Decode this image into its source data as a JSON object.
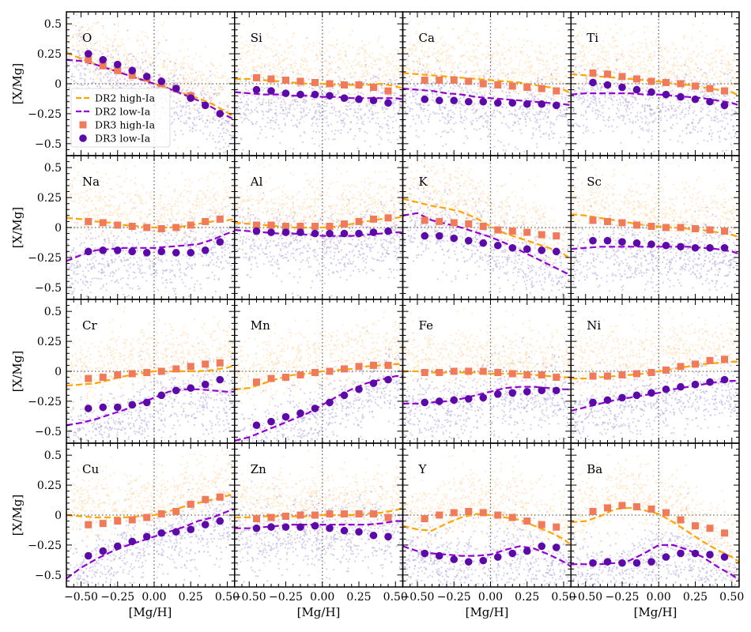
{
  "figure": {
    "xlabel": "[Mg/H]",
    "ylabel": "[X/Mg]",
    "xlim": [
      -0.6,
      0.55
    ],
    "ylim": [
      -0.6,
      0.6
    ],
    "xticks": [
      -0.5,
      -0.25,
      0.0,
      0.25,
      0.5
    ],
    "xtick_labels": [
      "−0.50",
      "−0.25",
      "0.00",
      "0.25",
      "0.50"
    ],
    "yticks": [
      -0.5,
      -0.25,
      0.0,
      0.25,
      0.5
    ],
    "ytick_labels": [
      "−0.5",
      "−0.25",
      "0",
      "0.25",
      "0.5"
    ],
    "reference_lines": {
      "x": 0.0,
      "y": 0.0
    },
    "legend": {
      "panel": "O",
      "location": "lower-left",
      "entries": [
        {
          "label": "DR2 high-Ia",
          "kind": "dashed-line",
          "color": "#ffa500"
        },
        {
          "label": "DR2 low-Ia",
          "kind": "dashed-line",
          "color": "#9400d3"
        },
        {
          "label": "DR3 high-Ia",
          "kind": "square",
          "color": "#f07b5a"
        },
        {
          "label": "DR3 low-Ia",
          "kind": "circle",
          "color": "#5b0aa8"
        }
      ]
    },
    "colors": {
      "high_scatter": "#ffd9a6",
      "low_scatter": "#b3a8dd",
      "dr2_high": "#ffa500",
      "dr2_low": "#9400d3",
      "dr3_high": "#f07b5a",
      "dr3_low": "#5b0aa8",
      "ref_line": "#666666"
    }
  },
  "chart_data": {
    "type": "scatter",
    "x_bins": [
      -0.45,
      -0.35,
      -0.25,
      -0.15,
      -0.05,
      0.05,
      0.15,
      0.25,
      0.35,
      0.45
    ],
    "curve_x": [
      -0.6,
      -0.5,
      -0.4,
      -0.3,
      -0.2,
      -0.1,
      0.0,
      0.1,
      0.2,
      0.3,
      0.4,
      0.5,
      0.55
    ],
    "panels": [
      {
        "element": "O",
        "dr3_high": [
          0.2,
          0.15,
          0.11,
          0.07,
          0.05,
          0.0,
          -0.04,
          -0.1,
          null,
          null
        ],
        "dr3_low": [
          0.25,
          0.2,
          0.16,
          0.11,
          0.06,
          0.02,
          -0.04,
          -0.12,
          -0.18,
          -0.25
        ],
        "dr2_high": [
          0.26,
          0.21,
          0.16,
          0.12,
          0.08,
          0.04,
          0.0,
          -0.04,
          -0.08,
          -0.12,
          -0.17,
          -0.24,
          -0.28
        ],
        "dr2_low": [
          0.2,
          0.19,
          0.16,
          0.12,
          0.08,
          0.04,
          0.0,
          -0.04,
          -0.09,
          -0.14,
          -0.2,
          -0.27,
          -0.3
        ]
      },
      {
        "element": "Si",
        "dr3_high": [
          0.05,
          0.04,
          0.03,
          0.02,
          0.01,
          0.0,
          -0.01,
          -0.01,
          -0.03,
          -0.06
        ],
        "dr3_low": [
          -0.05,
          -0.06,
          -0.08,
          -0.09,
          -0.09,
          -0.1,
          -0.12,
          -0.13,
          -0.14,
          -0.16
        ],
        "dr2_high": [
          0.04,
          0.04,
          0.03,
          0.02,
          0.01,
          0.0,
          0.0,
          -0.01,
          -0.01,
          -0.01,
          0.0,
          -0.02,
          -0.04
        ],
        "dr2_low": [
          -0.07,
          -0.08,
          -0.09,
          -0.09,
          -0.1,
          -0.1,
          -0.11,
          -0.11,
          -0.12,
          -0.12,
          -0.12,
          -0.12,
          -0.13
        ]
      },
      {
        "element": "Ca",
        "dr3_high": [
          0.03,
          0.03,
          0.03,
          0.02,
          0.0,
          -0.01,
          -0.02,
          -0.03,
          -0.04,
          -0.06
        ],
        "dr3_low": [
          -0.13,
          -0.14,
          -0.14,
          -0.15,
          -0.15,
          -0.16,
          -0.16,
          -0.17,
          -0.17,
          -0.18
        ],
        "dr2_high": [
          0.09,
          0.08,
          0.07,
          0.06,
          0.05,
          0.04,
          0.03,
          0.02,
          0.01,
          -0.01,
          -0.03,
          -0.05,
          -0.08
        ],
        "dr2_low": [
          -0.04,
          -0.05,
          -0.06,
          -0.08,
          -0.09,
          -0.11,
          -0.12,
          -0.13,
          -0.14,
          -0.15,
          -0.16,
          -0.17,
          -0.18
        ]
      },
      {
        "element": "Ti",
        "dr3_high": [
          0.09,
          0.08,
          0.06,
          0.04,
          0.02,
          0.01,
          0.0,
          -0.02,
          -0.04,
          -0.06
        ],
        "dr3_low": [
          0.01,
          -0.01,
          -0.03,
          -0.05,
          -0.07,
          -0.09,
          -0.11,
          -0.13,
          -0.15,
          -0.18
        ],
        "dr2_high": [
          0.08,
          0.07,
          0.06,
          0.05,
          0.04,
          0.03,
          0.02,
          0.0,
          -0.01,
          -0.03,
          -0.05,
          -0.07,
          -0.1
        ],
        "dr2_low": [
          -0.09,
          -0.08,
          -0.08,
          -0.08,
          -0.08,
          -0.09,
          -0.09,
          -0.1,
          -0.11,
          -0.12,
          -0.14,
          -0.16,
          -0.18
        ]
      },
      {
        "element": "Na",
        "dr3_high": [
          0.05,
          0.04,
          0.02,
          0.01,
          0.0,
          -0.01,
          0.0,
          0.02,
          0.05,
          0.07
        ],
        "dr3_low": [
          -0.2,
          -0.19,
          -0.19,
          -0.2,
          -0.21,
          -0.2,
          -0.21,
          -0.21,
          -0.19,
          -0.12
        ],
        "dr2_high": [
          0.08,
          0.07,
          0.05,
          0.04,
          0.02,
          0.01,
          0.0,
          0.0,
          0.01,
          0.03,
          0.05,
          0.06,
          0.07
        ],
        "dr2_low": [
          -0.28,
          -0.23,
          -0.19,
          -0.18,
          -0.17,
          -0.17,
          -0.17,
          -0.16,
          -0.15,
          -0.14,
          -0.1,
          -0.05,
          -0.03
        ]
      },
      {
        "element": "Al",
        "dr3_high": [
          0.02,
          0.02,
          0.01,
          0.01,
          0.01,
          0.01,
          0.03,
          0.05,
          0.07,
          0.08
        ],
        "dr3_low": [
          -0.03,
          -0.04,
          -0.04,
          -0.04,
          -0.05,
          -0.05,
          -0.05,
          -0.05,
          -0.04,
          -0.03
        ],
        "dr2_high": [
          0.04,
          0.03,
          0.02,
          0.01,
          0.0,
          0.0,
          0.0,
          0.01,
          0.03,
          0.05,
          0.07,
          0.08,
          0.09
        ],
        "dr2_low": [
          -0.02,
          -0.03,
          -0.04,
          -0.05,
          -0.05,
          -0.06,
          -0.07,
          -0.07,
          -0.07,
          -0.06,
          -0.05,
          -0.04,
          -0.04
        ]
      },
      {
        "element": "K",
        "dr3_high": [
          0.06,
          0.05,
          0.04,
          0.03,
          0.01,
          -0.02,
          -0.03,
          -0.04,
          -0.06,
          -0.07
        ],
        "dr3_low": [
          -0.07,
          -0.07,
          -0.09,
          -0.11,
          -0.13,
          -0.15,
          -0.17,
          -0.18,
          -0.19,
          -0.2
        ],
        "dr2_high": [
          0.24,
          0.21,
          0.18,
          0.16,
          0.13,
          0.08,
          0.01,
          -0.05,
          -0.09,
          -0.13,
          -0.17,
          -0.22,
          -0.27
        ],
        "dr2_low": [
          0.1,
          0.12,
          0.06,
          0.03,
          0.0,
          -0.04,
          -0.08,
          -0.13,
          -0.19,
          -0.25,
          -0.31,
          -0.37,
          -0.4
        ]
      },
      {
        "element": "Sc",
        "dr3_high": [
          0.06,
          0.05,
          0.04,
          0.02,
          0.01,
          0.0,
          0.0,
          -0.01,
          -0.02,
          -0.03
        ],
        "dr3_low": [
          -0.11,
          -0.11,
          -0.12,
          -0.13,
          -0.14,
          -0.15,
          -0.16,
          -0.17,
          -0.17,
          -0.17
        ],
        "dr2_high": [
          0.11,
          0.1,
          0.08,
          0.06,
          0.04,
          0.02,
          0.01,
          0.0,
          -0.01,
          -0.02,
          -0.04,
          -0.06,
          -0.08
        ],
        "dr2_low": [
          -0.18,
          -0.17,
          -0.16,
          -0.16,
          -0.16,
          -0.16,
          -0.16,
          -0.16,
          -0.16,
          -0.17,
          -0.18,
          -0.2,
          -0.22
        ]
      },
      {
        "element": "Cr",
        "dr3_high": [
          -0.06,
          -0.05,
          -0.03,
          -0.02,
          -0.01,
          0.0,
          0.02,
          0.04,
          0.06,
          0.07
        ],
        "dr3_low": [
          -0.31,
          -0.3,
          -0.3,
          -0.28,
          -0.26,
          -0.2,
          -0.16,
          -0.14,
          -0.11,
          -0.07
        ],
        "dr2_high": [
          -0.12,
          -0.11,
          -0.1,
          -0.07,
          -0.04,
          -0.02,
          0.0,
          0.0,
          0.0,
          0.0,
          0.01,
          0.03,
          0.05
        ],
        "dr2_low": [
          -0.45,
          -0.43,
          -0.4,
          -0.36,
          -0.32,
          -0.27,
          -0.22,
          -0.17,
          -0.15,
          -0.15,
          -0.16,
          -0.17,
          -0.17
        ]
      },
      {
        "element": "Mn",
        "dr3_high": [
          -0.09,
          -0.06,
          -0.05,
          -0.03,
          -0.01,
          0.0,
          0.02,
          0.04,
          0.05,
          0.05
        ],
        "dr3_low": [
          -0.45,
          -0.42,
          -0.38,
          -0.35,
          -0.31,
          -0.26,
          -0.2,
          -0.15,
          -0.1,
          -0.07
        ],
        "dr2_high": [
          -0.15,
          -0.14,
          -0.1,
          -0.06,
          -0.03,
          -0.02,
          0.0,
          0.01,
          0.02,
          0.04,
          0.05,
          0.06,
          0.06
        ],
        "dr2_low": [
          -0.58,
          -0.55,
          -0.5,
          -0.45,
          -0.4,
          -0.35,
          -0.28,
          -0.21,
          -0.15,
          -0.1,
          -0.07,
          -0.04,
          -0.04
        ]
      },
      {
        "element": "Fe",
        "dr3_high": [
          -0.01,
          -0.01,
          0.0,
          0.0,
          0.0,
          -0.01,
          -0.02,
          -0.03,
          -0.03,
          -0.05
        ],
        "dr3_low": [
          -0.26,
          -0.25,
          -0.24,
          -0.23,
          -0.22,
          -0.19,
          -0.18,
          -0.17,
          -0.16,
          -0.16
        ],
        "dr2_high": [
          0.0,
          0.0,
          -0.01,
          -0.01,
          -0.01,
          -0.01,
          -0.02,
          -0.02,
          -0.02,
          -0.03,
          -0.04,
          -0.05,
          -0.05
        ],
        "dr2_low": [
          -0.27,
          -0.27,
          -0.26,
          -0.25,
          -0.23,
          -0.2,
          -0.17,
          -0.14,
          -0.13,
          -0.13,
          -0.14,
          -0.15,
          -0.15
        ]
      },
      {
        "element": "Ni",
        "dr3_high": [
          -0.04,
          -0.04,
          -0.03,
          -0.02,
          -0.01,
          0.01,
          0.04,
          0.06,
          0.09,
          0.1
        ],
        "dr3_low": [
          -0.26,
          -0.24,
          -0.22,
          -0.2,
          -0.18,
          -0.15,
          -0.13,
          -0.11,
          -0.09,
          -0.07
        ],
        "dr2_high": [
          -0.06,
          -0.06,
          -0.05,
          -0.04,
          -0.03,
          -0.02,
          0.0,
          0.02,
          0.04,
          0.06,
          0.07,
          0.08,
          0.08
        ],
        "dr2_low": [
          -0.33,
          -0.3,
          -0.27,
          -0.24,
          -0.22,
          -0.2,
          -0.18,
          -0.15,
          -0.13,
          -0.11,
          -0.09,
          -0.08,
          -0.08
        ]
      },
      {
        "element": "Cu",
        "dr3_high": [
          -0.08,
          -0.07,
          -0.05,
          -0.04,
          -0.02,
          0.01,
          0.03,
          0.09,
          0.13,
          0.15
        ],
        "dr3_low": [
          -0.34,
          -0.3,
          -0.26,
          -0.22,
          -0.18,
          -0.15,
          -0.14,
          -0.12,
          -0.08,
          -0.05
        ],
        "dr2_high": [
          0.0,
          -0.01,
          -0.02,
          -0.02,
          -0.02,
          -0.01,
          0.0,
          0.03,
          0.07,
          0.1,
          0.13,
          0.16,
          0.18
        ],
        "dr2_low": [
          -0.53,
          -0.44,
          -0.37,
          -0.31,
          -0.26,
          -0.22,
          -0.18,
          -0.14,
          -0.1,
          -0.05,
          -0.02,
          0.03,
          0.05
        ]
      },
      {
        "element": "Zn",
        "dr3_high": [
          -0.03,
          -0.02,
          -0.01,
          0.0,
          0.0,
          0.01,
          0.01,
          0.01,
          0.01,
          -0.02
        ],
        "dr3_low": [
          -0.11,
          -0.1,
          -0.1,
          -0.1,
          -0.09,
          -0.11,
          -0.13,
          -0.14,
          -0.17,
          -0.18
        ],
        "dr2_high": [
          -0.02,
          -0.02,
          -0.01,
          -0.01,
          -0.01,
          -0.01,
          0.0,
          0.0,
          0.0,
          0.01,
          0.02,
          0.04,
          0.06
        ],
        "dr2_low": [
          -0.11,
          -0.11,
          -0.1,
          -0.09,
          -0.08,
          -0.08,
          -0.08,
          -0.08,
          -0.08,
          -0.08,
          -0.07,
          -0.05,
          -0.05
        ]
      },
      {
        "element": "Y",
        "dr3_high": [
          -0.03,
          0.0,
          0.02,
          0.03,
          0.02,
          0.0,
          -0.02,
          -0.05,
          -0.08,
          -0.1
        ],
        "dr3_low": [
          -0.32,
          -0.34,
          -0.37,
          -0.39,
          -0.38,
          -0.35,
          -0.32,
          -0.3,
          -0.26,
          -0.27
        ],
        "dr2_high": [
          -0.09,
          -0.12,
          -0.13,
          -0.07,
          -0.02,
          0.01,
          0.0,
          -0.02,
          -0.04,
          -0.09,
          -0.14,
          -0.2,
          -0.25
        ],
        "dr2_low": [
          -0.26,
          -0.3,
          -0.32,
          -0.33,
          -0.34,
          -0.34,
          -0.33,
          -0.29,
          -0.26,
          -0.28,
          -0.33,
          -0.39,
          -0.43
        ]
      },
      {
        "element": "Ba",
        "dr3_high": [
          0.03,
          0.06,
          0.08,
          0.07,
          0.05,
          0.02,
          -0.04,
          -0.09,
          -0.11,
          -0.15
        ],
        "dr3_low": [
          -0.4,
          -0.39,
          -0.4,
          -0.4,
          -0.39,
          -0.35,
          -0.32,
          -0.32,
          -0.33,
          -0.35
        ],
        "dr2_high": [
          -0.06,
          -0.05,
          -0.01,
          0.05,
          0.06,
          0.04,
          0.01,
          -0.06,
          -0.14,
          -0.22,
          -0.29,
          -0.35,
          -0.39
        ],
        "dr2_low": [
          -0.41,
          -0.41,
          -0.41,
          -0.4,
          -0.38,
          -0.32,
          -0.25,
          -0.25,
          -0.29,
          -0.35,
          -0.43,
          -0.5,
          -0.54
        ]
      }
    ]
  }
}
